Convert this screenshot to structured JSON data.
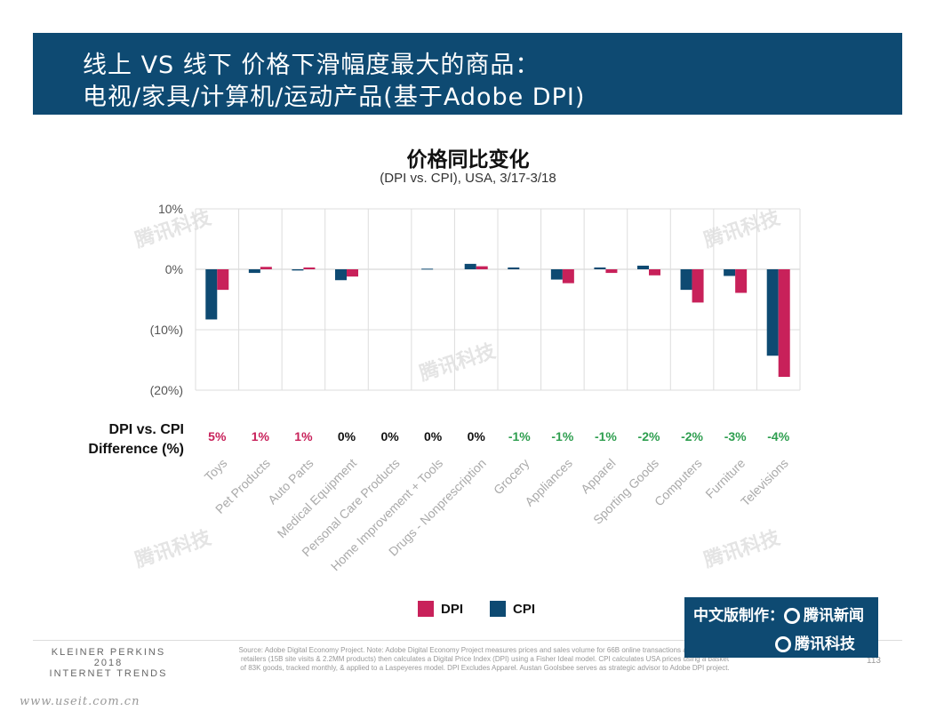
{
  "header": {
    "title_line1": "线上 VS 线下 价格下滑幅度最大的商品：",
    "title_line2": "电视/家具/计算机/运动产品(基于Adobe DPI)"
  },
  "chart_data": {
    "type": "bar",
    "title": "价格同比变化",
    "subtitle": "(DPI vs. CPI), USA, 3/17-3/18",
    "categories": [
      "Toys",
      "Pet Products",
      "Auto Parts",
      "Medical Equipment",
      "Personal Care Products",
      "Home Improvement + Tools",
      "Drugs - Nonprescription",
      "Grocery",
      "Appliances",
      "Apparel",
      "Sporting Goods",
      "Computers",
      "Furniture",
      "Televisions"
    ],
    "series": [
      {
        "name": "DPI",
        "color": "#c8215a",
        "values": [
          -3.4,
          0.4,
          0.3,
          -1.2,
          0,
          0,
          0.5,
          0,
          -2.3,
          -0.6,
          -1.0,
          -5.5,
          -3.9,
          -17.8
        ]
      },
      {
        "name": "CPI",
        "color": "#0e4a72",
        "values": [
          -8.3,
          -0.6,
          -0.2,
          -1.8,
          0,
          0.1,
          0.9,
          0.3,
          -1.7,
          0.3,
          0.6,
          -3.4,
          -1.1,
          -14.3
        ]
      }
    ],
    "ylim": [
      -20,
      10
    ],
    "yticks": [
      10,
      0,
      -10,
      -20
    ],
    "ytick_labels": [
      "10%",
      "0%",
      "(10%)",
      "(20%)"
    ],
    "grid": true,
    "legend": "bottom-center",
    "difference_label_line1": "DPI vs. CPI",
    "difference_label_line2": "Difference (%)",
    "difference": [
      "5%",
      "1%",
      "1%",
      "0%",
      "0%",
      "0%",
      "0%",
      "-1%",
      "-1%",
      "-1%",
      "-2%",
      "-2%",
      "-3%",
      "-4%"
    ],
    "difference_colors": {
      "positive": "#c8215a",
      "zero": "#111111",
      "negative": "#2e9e4f"
    }
  },
  "legend": {
    "dpi": "DPI",
    "cpi": "CPI"
  },
  "footer": {
    "brand_line1": "KLEINER PERKINS",
    "brand_line2": "2018",
    "brand_line3": "INTERNET TRENDS",
    "source": "Source: Adobe Digital Economy Project. Note: Adobe Digital Economy Project measures prices and sales volume for 66B online transactions at top 100 USA retailers (15B site visits & 2.2MM products) then calculates a Digital Price Index (DPI) using a Fisher Ideal model. CPI calculates USA prices using a basket of 83K goods, tracked monthly, & applied to a Laspeyeres model. DPI Excludes Apparel. Austan Goolsbee serves as strategic advisor to Adobe DPI project.",
    "page": "113",
    "url": "www.useit.com.cn"
  },
  "credit": {
    "prefix": "中文版制作：",
    "org1": "腾讯新闻",
    "org2": "腾讯科技"
  },
  "watermark": "腾讯科技"
}
